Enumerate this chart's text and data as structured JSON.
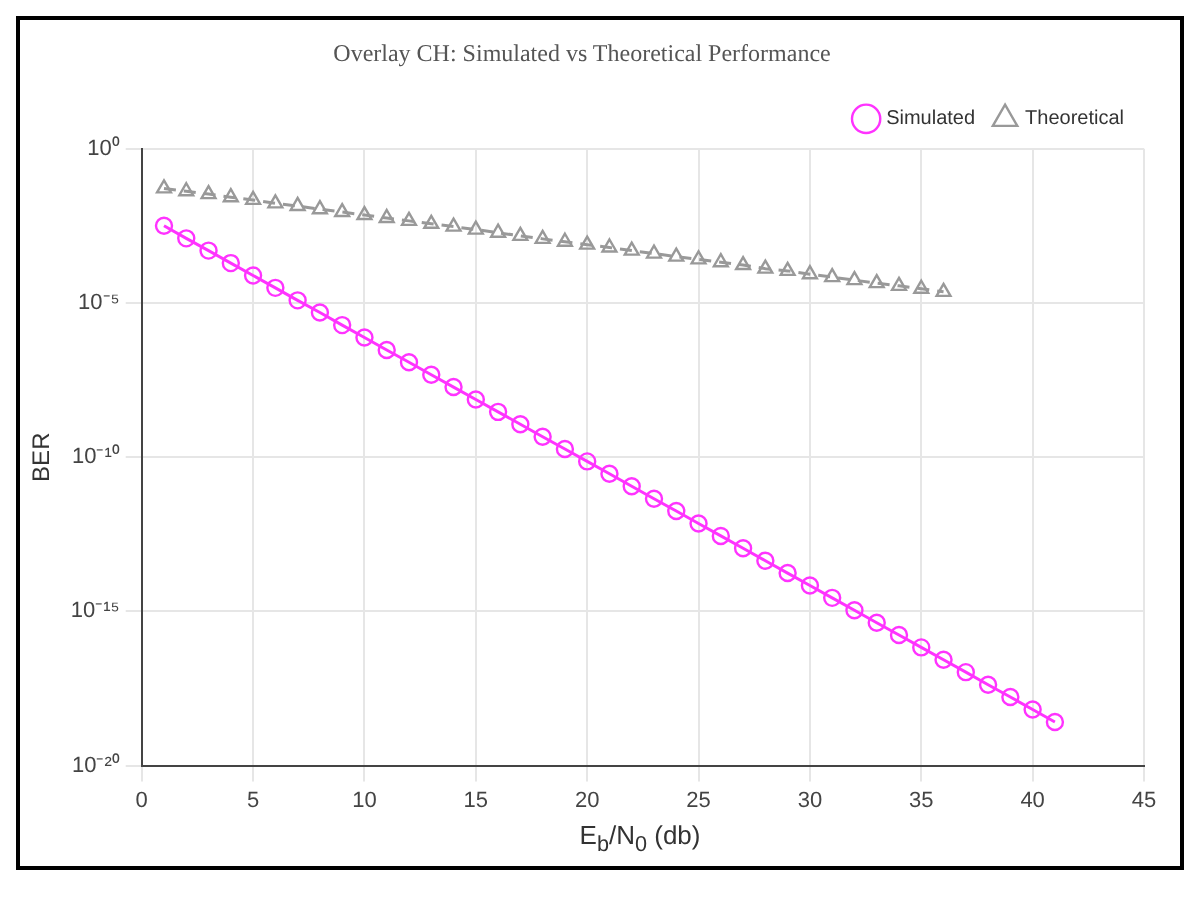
{
  "chart_data": {
    "type": "line",
    "title": "Overlay CH: Simulated vs Theoretical Performance",
    "xlabel": "E$_{b}$/N$_{0}$ (db)",
    "ylabel": "BER",
    "xlim": [
      0,
      45
    ],
    "xticks": [
      0,
      5,
      10,
      15,
      20,
      25,
      30,
      35,
      40,
      45
    ],
    "ylim": [
      1e-20,
      1
    ],
    "yticks": [
      {
        "value": 1e-20,
        "label": "10⁻²⁰"
      },
      {
        "value": 1e-15,
        "label": "10⁻¹⁵"
      },
      {
        "value": 1e-10,
        "label": "10⁻¹⁰"
      },
      {
        "value": 1e-05,
        "label": "10⁻⁵"
      },
      {
        "value": 1,
        "label": "10⁰"
      }
    ],
    "log": "y",
    "grid": true,
    "legend": "top right",
    "series": [
      {
        "name": "Simulated",
        "color": "#ff33ff",
        "marker": "circle",
        "line_style": "solid",
        "x": [
          1,
          2,
          3,
          4,
          5,
          6,
          7,
          8,
          9,
          10,
          11,
          12,
          13,
          14,
          15,
          16,
          17,
          18,
          19,
          20,
          21,
          22,
          23,
          24,
          25,
          26,
          27,
          28,
          29,
          30,
          31,
          32,
          33,
          34,
          35,
          36,
          37,
          38,
          39,
          40,
          41
        ],
        "values": [
          0.0032,
          0.00125,
          0.0005,
          0.000197,
          7.8e-05,
          3.1e-05,
          1.22e-05,
          4.9e-06,
          1.92e-06,
          7.6e-07,
          3e-07,
          1.2e-07,
          4.7e-08,
          1.88e-08,
          7.4e-09,
          2.95e-09,
          1.17e-09,
          4.6e-10,
          1.84e-10,
          7.3e-11,
          2.9e-11,
          1.14e-11,
          4.5e-12,
          1.8e-12,
          7.1e-13,
          2.8e-13,
          1.12e-13,
          4.4e-14,
          1.75e-14,
          6.9e-15,
          2.75e-15,
          1.09e-15,
          4.3e-16,
          1.71e-16,
          6.8e-17,
          2.7e-17,
          1.07e-17,
          4.2e-18,
          1.67e-18,
          6.6e-19,
          2.6e-19
        ]
      },
      {
        "name": "Theoretical",
        "color": "#999999",
        "marker": "triangle",
        "line_style": "dashed",
        "x": [
          1,
          2,
          3,
          4,
          5,
          6,
          7,
          8,
          9,
          10,
          11,
          12,
          13,
          14,
          15,
          16,
          17,
          18,
          19,
          20,
          21,
          22,
          23,
          24,
          25,
          26,
          27,
          28,
          29,
          30,
          31,
          32,
          33,
          34,
          35,
          36
        ],
        "values": [
          0.052,
          0.042,
          0.034,
          0.027,
          0.022,
          0.017,
          0.014,
          0.011,
          0.0089,
          0.0071,
          0.0057,
          0.0046,
          0.0037,
          0.003,
          0.0024,
          0.0019,
          0.0015,
          0.0012,
          0.00097,
          0.00078,
          0.00063,
          0.0005,
          0.0004,
          0.00032,
          0.00026,
          0.00021,
          0.00017,
          0.00013,
          0.00011,
          8.6e-05,
          6.9e-05,
          5.5e-05,
          4.4e-05,
          3.6e-05,
          2.9e-05,
          2.3e-05
        ]
      }
    ]
  }
}
